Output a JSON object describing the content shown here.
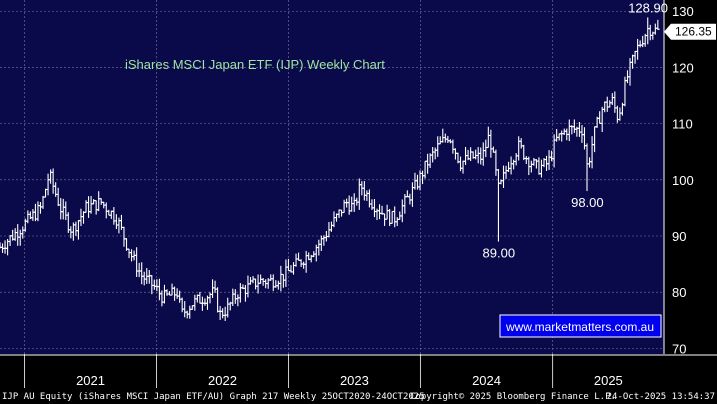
{
  "chart_data": {
    "type": "ohlc",
    "title": "iShares MSCI Japan ETF (IJP) Weekly Chart",
    "ylim": [
      69,
      132
    ],
    "y_ticks": [
      70,
      80,
      90,
      100,
      110,
      120,
      130
    ],
    "x_labels": [
      "2021",
      "2022",
      "2023",
      "2024",
      "2025"
    ],
    "last_price": "126.35",
    "annotations": [
      {
        "label": "128.90",
        "date": "2025-09-22",
        "value": 128.9,
        "placement": "above"
      },
      {
        "label": "89.00",
        "date": "2024-08-05",
        "value": 89.0,
        "placement": "below"
      },
      {
        "label": "98.00",
        "date": "2025-04-07",
        "value": 98.0,
        "placement": "below"
      }
    ],
    "path_points": [
      [
        "2020-10-25",
        88
      ],
      [
        "2020-12-15",
        91
      ],
      [
        "2021-02-15",
        95
      ],
      [
        "2021-03-10",
        101
      ],
      [
        "2021-04-10",
        95
      ],
      [
        "2021-05-12",
        91
      ],
      [
        "2021-06-20",
        95
      ],
      [
        "2021-08-01",
        96
      ],
      [
        "2021-09-14",
        93
      ],
      [
        "2021-10-20",
        87
      ],
      [
        "2021-11-20",
        83
      ],
      [
        "2021-12-25",
        81
      ],
      [
        "2022-01-20",
        79
      ],
      [
        "2022-03-01",
        80
      ],
      [
        "2022-03-10",
        76
      ],
      [
        "2022-04-10",
        78
      ],
      [
        "2022-05-10",
        79
      ],
      [
        "2022-06-10",
        80
      ],
      [
        "2022-06-25",
        76
      ],
      [
        "2022-07-15",
        77
      ],
      [
        "2022-08-15",
        80
      ],
      [
        "2022-09-15",
        81
      ],
      [
        "2022-10-10",
        82
      ],
      [
        "2022-11-15",
        82
      ],
      [
        "2022-12-20",
        83
      ],
      [
        "2023-01-25",
        85
      ],
      [
        "2023-03-01",
        87
      ],
      [
        "2023-04-01",
        89
      ],
      [
        "2023-05-01",
        92
      ],
      [
        "2023-06-10",
        96
      ],
      [
        "2023-07-01",
        95
      ],
      [
        "2023-07-20",
        99
      ],
      [
        "2023-08-20",
        96
      ],
      [
        "2023-09-20",
        94
      ],
      [
        "2023-10-20",
        93
      ],
      [
        "2023-11-20",
        96
      ],
      [
        "2023-12-20",
        99
      ],
      [
        "2024-01-20",
        103
      ],
      [
        "2024-02-20",
        106
      ],
      [
        "2024-03-20",
        108
      ],
      [
        "2024-04-20",
        103
      ],
      [
        "2024-05-20",
        104
      ],
      [
        "2024-06-20",
        104
      ],
      [
        "2024-07-10",
        108
      ],
      [
        "2024-08-05",
        98
      ],
      [
        "2024-09-01",
        103
      ],
      [
        "2024-09-30",
        106
      ],
      [
        "2024-10-20",
        104
      ],
      [
        "2024-11-20",
        102
      ],
      [
        "2024-12-20",
        103
      ],
      [
        "2025-01-10",
        107
      ],
      [
        "2025-02-10",
        109
      ],
      [
        "2025-03-01",
        109
      ],
      [
        "2025-03-25",
        109
      ],
      [
        "2025-04-07",
        102
      ],
      [
        "2025-04-25",
        108
      ],
      [
        "2025-05-20",
        113
      ],
      [
        "2025-06-15",
        114
      ],
      [
        "2025-07-01",
        111
      ],
      [
        "2025-07-25",
        118
      ],
      [
        "2025-08-20",
        123
      ],
      [
        "2025-09-22",
        127
      ],
      [
        "2025-10-24",
        126.35
      ]
    ]
  },
  "watermark": "www.marketmatters.com.au",
  "footer": {
    "left": "IJP AU Equity (iShares MSCI Japan ETF/AU) Graph 217 Weekly 25OCT2020-24OCT2025",
    "center": "Copyright© 2025 Bloomberg Finance L.P.",
    "right": "24-Oct-2025 13:54:37"
  },
  "colors": {
    "background": "#0a0a4a",
    "grid": "#7a7a9a",
    "bars": "#ffffff",
    "title": "#9fe59f",
    "last_price_box": "#ffffff"
  }
}
